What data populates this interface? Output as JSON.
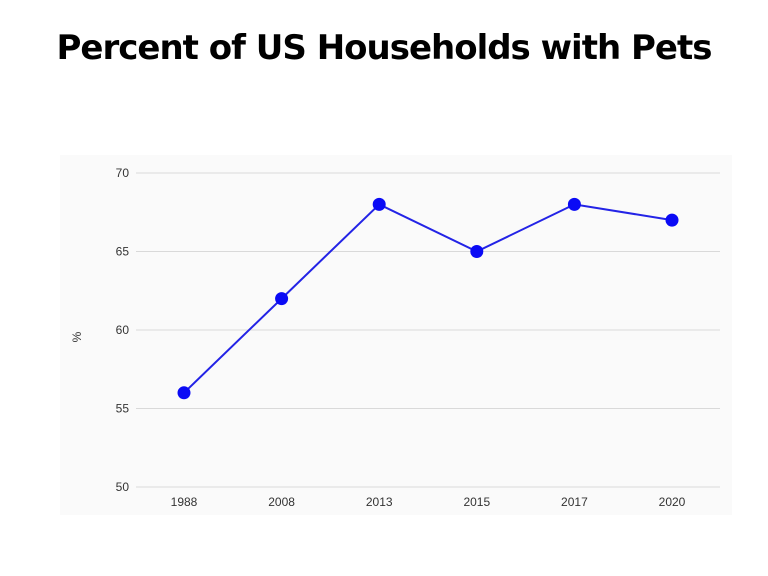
{
  "title": "Percent of US Households with Pets",
  "chart_data": {
    "type": "line",
    "title": "Percent of US Households with Pets",
    "xlabel": "",
    "ylabel": "%",
    "categories": [
      "1988",
      "2008",
      "2013",
      "2015",
      "2017",
      "2020"
    ],
    "values": [
      56,
      62,
      68,
      65,
      68,
      67
    ],
    "ylim": [
      50,
      70
    ],
    "yticks": [
      50,
      55,
      60,
      65,
      70
    ],
    "grid": true,
    "legend": "none",
    "colors": {
      "line": "#2323e6",
      "marker": "#0a0af5",
      "grid": "#d9d9d9",
      "plot_bg": "#fafafa"
    }
  }
}
